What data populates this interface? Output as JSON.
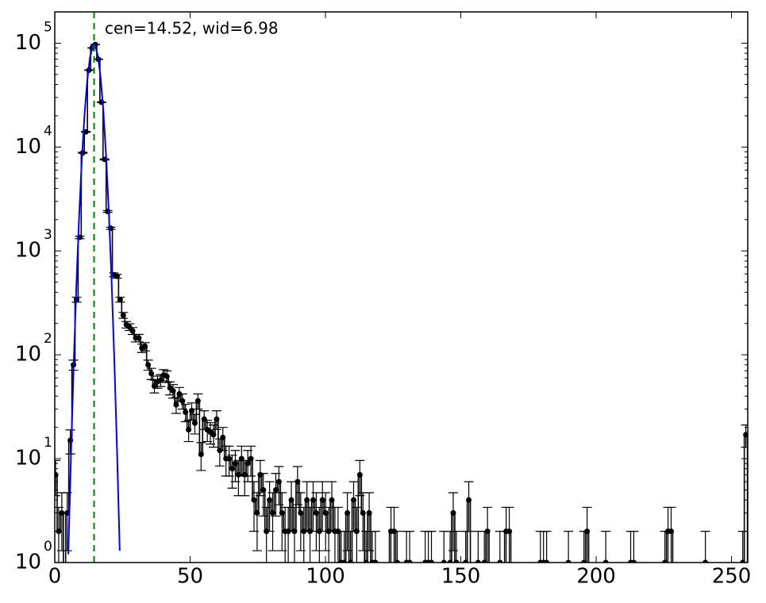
{
  "chart_data": {
    "type": "errorbar",
    "annotation": "cen=14.52, wid=6.98",
    "vline": 14.52,
    "vline_color": "#008000",
    "yscale": "log",
    "xlim": [
      0,
      256
    ],
    "ylim": [
      1,
      200000
    ],
    "xticks": [
      0,
      50,
      100,
      150,
      200,
      250
    ],
    "yticks": [
      {
        "value": 1,
        "label": "10",
        "exponent": "0"
      },
      {
        "value": 10,
        "label": "10",
        "exponent": "1"
      },
      {
        "value": 100,
        "label": "10",
        "exponent": "2"
      },
      {
        "value": 1000,
        "label": "10",
        "exponent": "3"
      },
      {
        "value": 10000,
        "label": "10",
        "exponent": "4"
      },
      {
        "value": 100000,
        "label": "10",
        "exponent": "5"
      }
    ],
    "data": {
      "color": "#000000",
      "x": [
        0.3,
        1.45,
        2.6,
        4.6,
        5.75,
        6.9,
        8.05,
        9.2,
        10.35,
        11.5,
        12.65,
        13.8,
        14.95,
        16.1,
        17.25,
        18.4,
        19.55,
        20.7,
        21.85,
        23,
        24.15,
        25.3,
        26.45,
        27.6,
        28.75,
        29.9,
        31.05,
        32.2,
        33.35,
        34.5,
        35.65,
        36.8,
        37.95,
        39.1,
        40.25,
        41.4,
        42.55,
        43.7,
        44.85,
        46,
        47.15,
        48.3,
        49.45,
        50.6,
        51.75,
        52.9,
        54.05,
        55.2,
        56.35,
        57.5,
        58.65,
        59.8,
        60.95,
        62.1,
        63.25,
        64.4,
        65.55,
        66.7,
        67.85,
        69,
        70.15,
        71.3,
        72.45,
        73.6,
        74.75,
        75.9,
        77.05,
        78.2,
        79.35,
        80.5,
        81.65,
        82.8,
        83.95,
        85.1,
        86.25,
        87.4,
        88.55,
        89.7,
        90.85,
        92,
        93.15,
        94.3,
        95.45,
        96.6,
        97.75,
        98.9,
        100.05,
        101.2,
        102.35,
        103.5,
        104.65,
        105.8,
        106.95,
        108.1,
        109.25,
        110.4,
        111.55,
        112.7,
        113.85,
        115,
        116.15,
        117.3,
        118.45,
        124.2,
        125.35,
        126.5,
        129.95,
        131.1,
        136.85,
        138,
        139.15,
        143.75,
        146.05,
        147.2,
        148.35,
        151.8,
        152.95,
        156.4,
        158.7,
        159.85,
        164.45,
        166.75,
        167.9,
        179.4,
        180.55,
        181.7,
        189.75,
        195.5,
        196.65,
        203.55,
        212.75,
        213.9,
        225.4,
        226.55,
        227.7,
        240.35,
        254.15,
        255.3
      ],
      "values": [
        7,
        2,
        3,
        3,
        15,
        80,
        340,
        1350,
        8800,
        14000,
        55000,
        90000,
        97000,
        70000,
        27000,
        7600,
        2400,
        1650,
        590,
        570,
        340,
        240,
        195,
        185,
        170,
        145,
        145,
        116,
        120,
        80,
        66,
        50,
        55,
        57,
        64,
        62,
        48,
        45,
        33,
        42,
        36,
        28,
        19,
        29,
        22,
        36,
        11,
        24,
        19,
        18,
        17,
        24,
        12,
        16,
        10,
        10,
        8,
        9,
        7,
        10,
        7,
        9,
        10,
        4,
        3,
        7,
        5,
        2,
        4,
        3,
        5,
        6,
        3,
        2,
        2,
        4,
        2,
        6,
        3,
        2,
        4,
        2,
        4,
        3,
        2,
        4,
        3,
        2,
        4,
        2,
        2,
        1,
        1,
        3,
        1,
        4,
        2,
        7,
        3,
        1,
        3,
        1,
        1,
        2,
        2,
        1,
        1,
        1,
        1,
        1,
        1,
        1,
        1,
        3,
        1,
        1,
        4,
        1,
        1,
        2,
        1,
        2,
        2,
        1,
        1,
        1,
        1,
        1,
        2,
        1,
        1,
        1,
        1,
        2,
        2,
        1,
        1,
        17
      ],
      "errors": [
        2.6,
        1.4,
        1.7,
        1.7,
        3.9,
        8.9,
        18.4,
        36.7,
        93.8,
        118.3,
        234.5,
        300,
        311.4,
        264.6,
        164.3,
        87.2,
        49,
        40.6,
        24.3,
        23.9,
        18.4,
        15.5,
        14,
        13.6,
        13,
        12,
        12,
        10.8,
        11,
        8.9,
        8.1,
        7.1,
        7.4,
        7.5,
        8,
        7.9,
        6.9,
        6.7,
        5.7,
        6.5,
        6,
        5.3,
        4.4,
        5.4,
        4.7,
        6,
        3.3,
        4.9,
        4.4,
        4.2,
        4.1,
        4.9,
        3.5,
        4,
        3.2,
        3.2,
        2.8,
        3,
        2.6,
        3.2,
        2.6,
        3,
        3.2,
        2,
        1.7,
        2.6,
        2.2,
        1.4,
        2,
        1.7,
        2.2,
        2.4,
        1.7,
        1.4,
        1.4,
        2,
        1.4,
        2.4,
        1.7,
        1.4,
        2,
        1.4,
        2,
        1.7,
        1.4,
        2,
        1.7,
        1.4,
        2,
        1.4,
        1.4,
        1,
        1,
        1.7,
        1,
        2,
        1.4,
        2.6,
        1.7,
        1,
        1.7,
        1,
        1,
        1.4,
        1.4,
        1,
        1,
        1,
        1,
        1,
        1,
        1,
        1,
        1.7,
        1,
        1,
        2,
        1,
        1,
        1.4,
        1,
        1.4,
        1.4,
        1,
        1,
        1,
        1,
        1,
        1.4,
        1,
        1,
        1,
        1,
        1.4,
        1.4,
        1,
        1,
        4.1
      ]
    },
    "fit": {
      "color": "#0000ff",
      "x": [
        5,
        6,
        7,
        8,
        9,
        10,
        11,
        12,
        13,
        14,
        14.52,
        15,
        16,
        17,
        18,
        19,
        20,
        21,
        22,
        23,
        24
      ],
      "values": [
        1.2,
        11,
        82,
        477,
        2150,
        7600,
        20600,
        43800,
        72600,
        93800,
        97000,
        94300,
        73800,
        44900,
        21400,
        7880,
        2280,
        509,
        89,
        12,
        1.3
      ]
    }
  }
}
